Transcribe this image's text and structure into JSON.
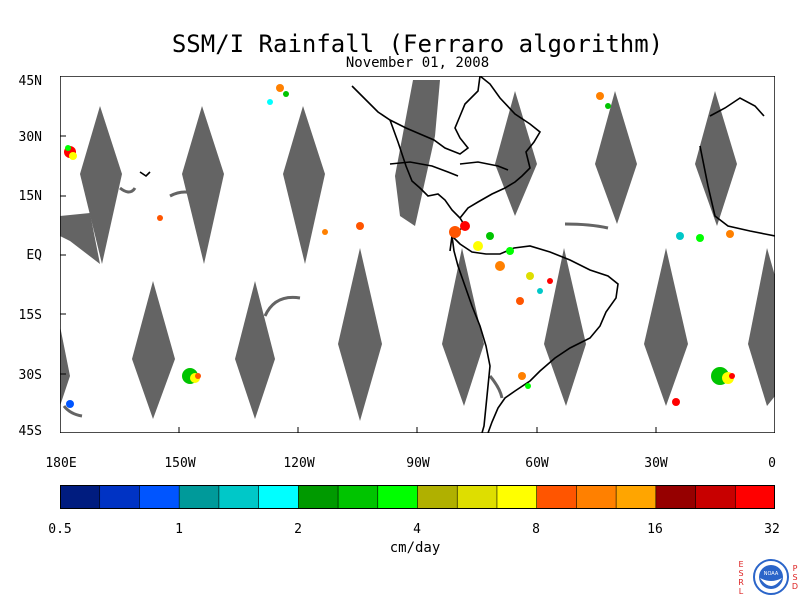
{
  "title": "SSM/I Rainfall (Ferraro algorithm)",
  "subtitle": "November 01, 2008",
  "y_axis": {
    "ticks": [
      "45N",
      "30N",
      "15N",
      "EQ",
      "15S",
      "30S",
      "45S"
    ]
  },
  "x_axis": {
    "ticks": [
      "180E",
      "150W",
      "120W",
      "90W",
      "60W",
      "30W",
      "0"
    ]
  },
  "colorbar": {
    "tick_labels": [
      "0.5",
      "1",
      "2",
      "4",
      "8",
      "16",
      "32"
    ],
    "units": "cm/day",
    "colors": [
      "#001c7f",
      "#0033c4",
      "#0055ff",
      "#009a9a",
      "#00c8c8",
      "#00ffff",
      "#009a00",
      "#00c400",
      "#00ff00",
      "#b0b000",
      "#dede00",
      "#ffff00",
      "#ff5500",
      "#ff8000",
      "#ffa500",
      "#960000",
      "#c80000",
      "#ff0000"
    ]
  },
  "colors": {
    "swath_gap": "#646464",
    "coastline": "#000000"
  },
  "logo": {
    "left_letters": "ESRL",
    "right_letters": "PSD",
    "name": "NOAA"
  }
}
